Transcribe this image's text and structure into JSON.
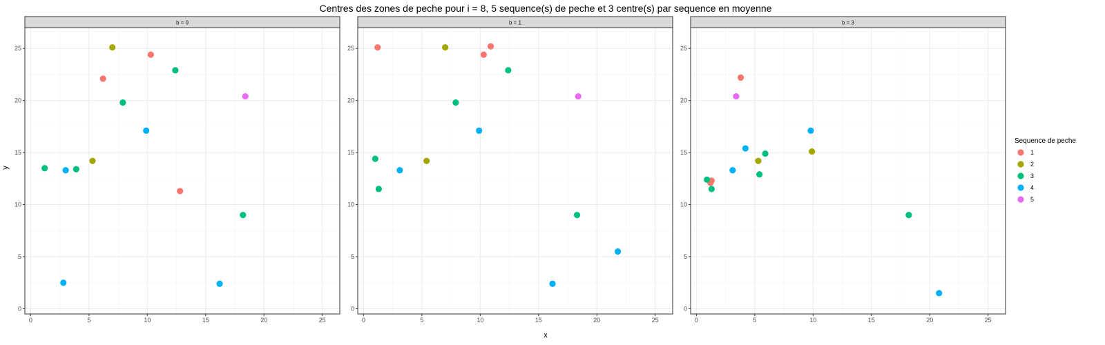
{
  "chart_data": {
    "type": "scatter",
    "title": "Centres des zones de peche pour i = 8, 5 sequence(s) de peche et 3 centre(s) par sequence en moyenne",
    "xlabel": "x",
    "ylabel": "y",
    "xlim": [
      -0.5,
      26.5
    ],
    "ylim": [
      -0.5,
      27
    ],
    "xticks": [
      0,
      5,
      10,
      15,
      20,
      25
    ],
    "yticks": [
      0,
      5,
      10,
      15,
      20,
      25
    ],
    "xtick_labels": [
      "0",
      "5",
      "10",
      "15",
      "20",
      "25"
    ],
    "ytick_labels": [
      "0",
      "5",
      "10",
      "15",
      "20",
      "25"
    ],
    "grid": true,
    "legend": {
      "title": "Sequence de peche",
      "placement": "right",
      "entries": [
        {
          "label": "1",
          "color": "#F8766D"
        },
        {
          "label": "2",
          "color": "#A3A500"
        },
        {
          "label": "3",
          "color": "#00BF7D"
        },
        {
          "label": "4",
          "color": "#00B0F6"
        },
        {
          "label": "5",
          "color": "#E76BF3"
        }
      ]
    },
    "facets": [
      {
        "label": "b = 0",
        "points": [
          {
            "x": 6.2,
            "y": 22.1,
            "seq": "1"
          },
          {
            "x": 10.3,
            "y": 24.4,
            "seq": "1"
          },
          {
            "x": 12.8,
            "y": 11.3,
            "seq": "1"
          },
          {
            "x": 7.0,
            "y": 25.1,
            "seq": "2"
          },
          {
            "x": 5.3,
            "y": 14.2,
            "seq": "2"
          },
          {
            "x": 1.2,
            "y": 13.5,
            "seq": "3"
          },
          {
            "x": 3.9,
            "y": 13.4,
            "seq": "3"
          },
          {
            "x": 7.9,
            "y": 19.8,
            "seq": "3"
          },
          {
            "x": 12.4,
            "y": 22.9,
            "seq": "3"
          },
          {
            "x": 18.2,
            "y": 9.0,
            "seq": "3"
          },
          {
            "x": 3.0,
            "y": 13.3,
            "seq": "4"
          },
          {
            "x": 9.9,
            "y": 17.1,
            "seq": "4"
          },
          {
            "x": 2.8,
            "y": 2.5,
            "seq": "4"
          },
          {
            "x": 16.2,
            "y": 2.4,
            "seq": "4"
          },
          {
            "x": 18.4,
            "y": 20.4,
            "seq": "5"
          }
        ]
      },
      {
        "label": "b = 1",
        "points": [
          {
            "x": 1.2,
            "y": 25.1,
            "seq": "1"
          },
          {
            "x": 10.3,
            "y": 24.4,
            "seq": "1"
          },
          {
            "x": 10.9,
            "y": 25.2,
            "seq": "1"
          },
          {
            "x": 7.0,
            "y": 25.1,
            "seq": "2"
          },
          {
            "x": 5.4,
            "y": 14.2,
            "seq": "2"
          },
          {
            "x": 1.0,
            "y": 14.4,
            "seq": "3"
          },
          {
            "x": 1.3,
            "y": 11.5,
            "seq": "3"
          },
          {
            "x": 7.9,
            "y": 19.8,
            "seq": "3"
          },
          {
            "x": 12.4,
            "y": 22.9,
            "seq": "3"
          },
          {
            "x": 18.3,
            "y": 9.0,
            "seq": "3"
          },
          {
            "x": 3.1,
            "y": 13.3,
            "seq": "4"
          },
          {
            "x": 9.9,
            "y": 17.1,
            "seq": "4"
          },
          {
            "x": 16.2,
            "y": 2.4,
            "seq": "4"
          },
          {
            "x": 21.8,
            "y": 5.5,
            "seq": "4"
          },
          {
            "x": 18.4,
            "y": 20.4,
            "seq": "5"
          }
        ]
      },
      {
        "label": "b = 3",
        "points": [
          {
            "x": 3.8,
            "y": 22.2,
            "seq": "1"
          },
          {
            "x": 1.3,
            "y": 12.3,
            "seq": "1"
          },
          {
            "x": 1.2,
            "y": 12.1,
            "seq": "1"
          },
          {
            "x": 5.3,
            "y": 14.2,
            "seq": "2"
          },
          {
            "x": 9.9,
            "y": 15.1,
            "seq": "2"
          },
          {
            "x": 0.9,
            "y": 12.4,
            "seq": "3"
          },
          {
            "x": 1.3,
            "y": 11.5,
            "seq": "3"
          },
          {
            "x": 5.4,
            "y": 12.9,
            "seq": "3"
          },
          {
            "x": 5.9,
            "y": 14.9,
            "seq": "3"
          },
          {
            "x": 18.2,
            "y": 9.0,
            "seq": "3"
          },
          {
            "x": 3.1,
            "y": 13.3,
            "seq": "4"
          },
          {
            "x": 4.2,
            "y": 15.4,
            "seq": "4"
          },
          {
            "x": 9.8,
            "y": 17.1,
            "seq": "4"
          },
          {
            "x": 20.8,
            "y": 1.5,
            "seq": "4"
          },
          {
            "x": 3.4,
            "y": 20.4,
            "seq": "5"
          }
        ]
      }
    ]
  }
}
